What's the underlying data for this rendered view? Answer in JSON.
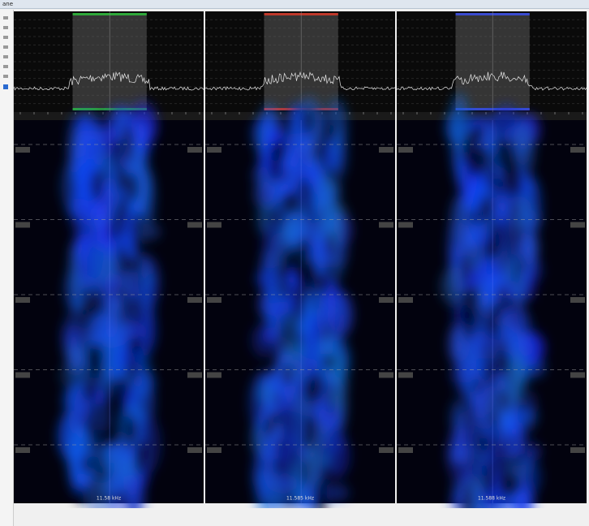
{
  "window": {
    "title": "ane"
  },
  "panels": [
    {
      "bottom_label": "11.58 kHz",
      "accent": "#2fa83a"
    },
    {
      "bottom_label": "11.585 kHz",
      "accent": "#c0392b"
    },
    {
      "bottom_label": "11.588 kHz",
      "accent": "#3a4bd0"
    }
  ]
}
